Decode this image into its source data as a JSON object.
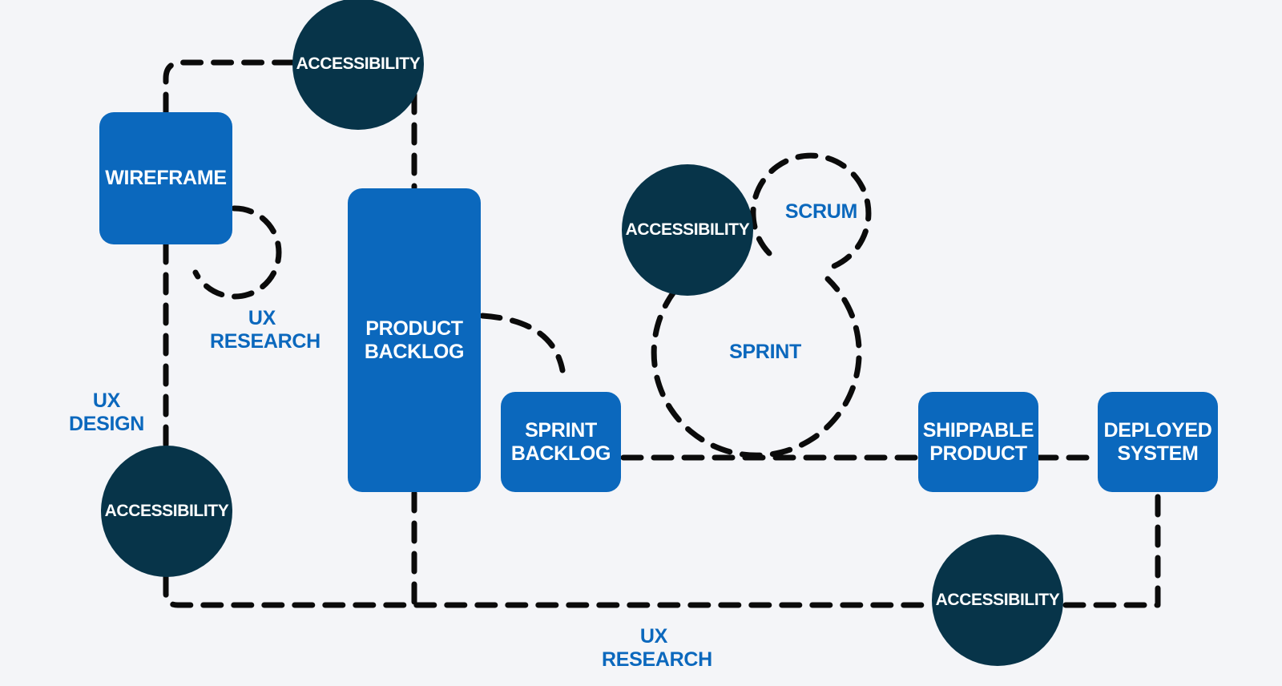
{
  "colors": {
    "background": "#f4f5f8",
    "box_fill": "#0b68bd",
    "circle_fill": "#073449",
    "label_text": "#0b68bd",
    "connector": "#0b0b0b"
  },
  "nodes": {
    "wireframe": "WIREFRAME",
    "product_backlog": "PRODUCT\nBACKLOG",
    "sprint_backlog": "SPRINT\nBACKLOG",
    "shippable_product": "SHIPPABLE\nPRODUCT",
    "deployed_system": "DEPLOYED\nSYSTEM"
  },
  "accessibility": {
    "top": "ACCESSIBILITY",
    "middle": "ACCESSIBILITY",
    "left": "ACCESSIBILITY",
    "bottom_right": "ACCESSIBILITY"
  },
  "labels": {
    "ux_research_top": "UX\nRESEARCH",
    "ux_design": "UX\nDESIGN",
    "scrum": "SCRUM",
    "sprint": "SPRINT",
    "ux_research_bottom": "UX\nRESEARCH"
  }
}
